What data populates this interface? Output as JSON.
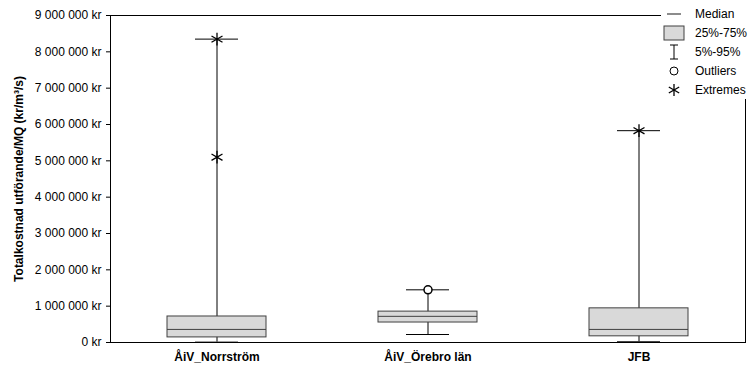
{
  "chart_data": {
    "type": "box",
    "categories": [
      "ÅiV_Norrström",
      "ÅiV_Örebro län",
      "JFB"
    ],
    "whisker_low": [
      10000,
      220000,
      20000
    ],
    "q1": [
      140000,
      550000,
      170000
    ],
    "median": [
      360000,
      720000,
      360000
    ],
    "q3": [
      716000,
      850000,
      940000
    ],
    "whisker_high": [
      8350000,
      1450000,
      5830000
    ],
    "outliers": [
      [],
      [
        1450000
      ],
      []
    ],
    "extremes": [
      [
        5100000,
        8350000
      ],
      [],
      [
        5830000
      ]
    ],
    "color": "#d9d9d9",
    "ylabel": "Totalkostnad utförande/MQ (kr/m³/s)",
    "ylim": [
      0,
      9000000
    ],
    "yticks": [
      {
        "value": 0,
        "label": "0 kr"
      },
      {
        "value": 1000000,
        "label": "1 000 000 kr"
      },
      {
        "value": 2000000,
        "label": "2 000 000 kr"
      },
      {
        "value": 3000000,
        "label": "3 000 000 kr"
      },
      {
        "value": 4000000,
        "label": "4 000 000 kr"
      },
      {
        "value": 5000000,
        "label": "5 000 000 kr"
      },
      {
        "value": 6000000,
        "label": "6 000 000 kr"
      },
      {
        "value": 7000000,
        "label": "7 000 000 kr"
      },
      {
        "value": 8000000,
        "label": "8 000 000 kr"
      },
      {
        "value": 9000000,
        "label": "9 000 000 kr"
      }
    ],
    "legend_labels": [
      "Median",
      "25%-75%",
      "5%-95%",
      "Outliers",
      "Extremes"
    ],
    "legend": "top-right",
    "grid": false
  }
}
